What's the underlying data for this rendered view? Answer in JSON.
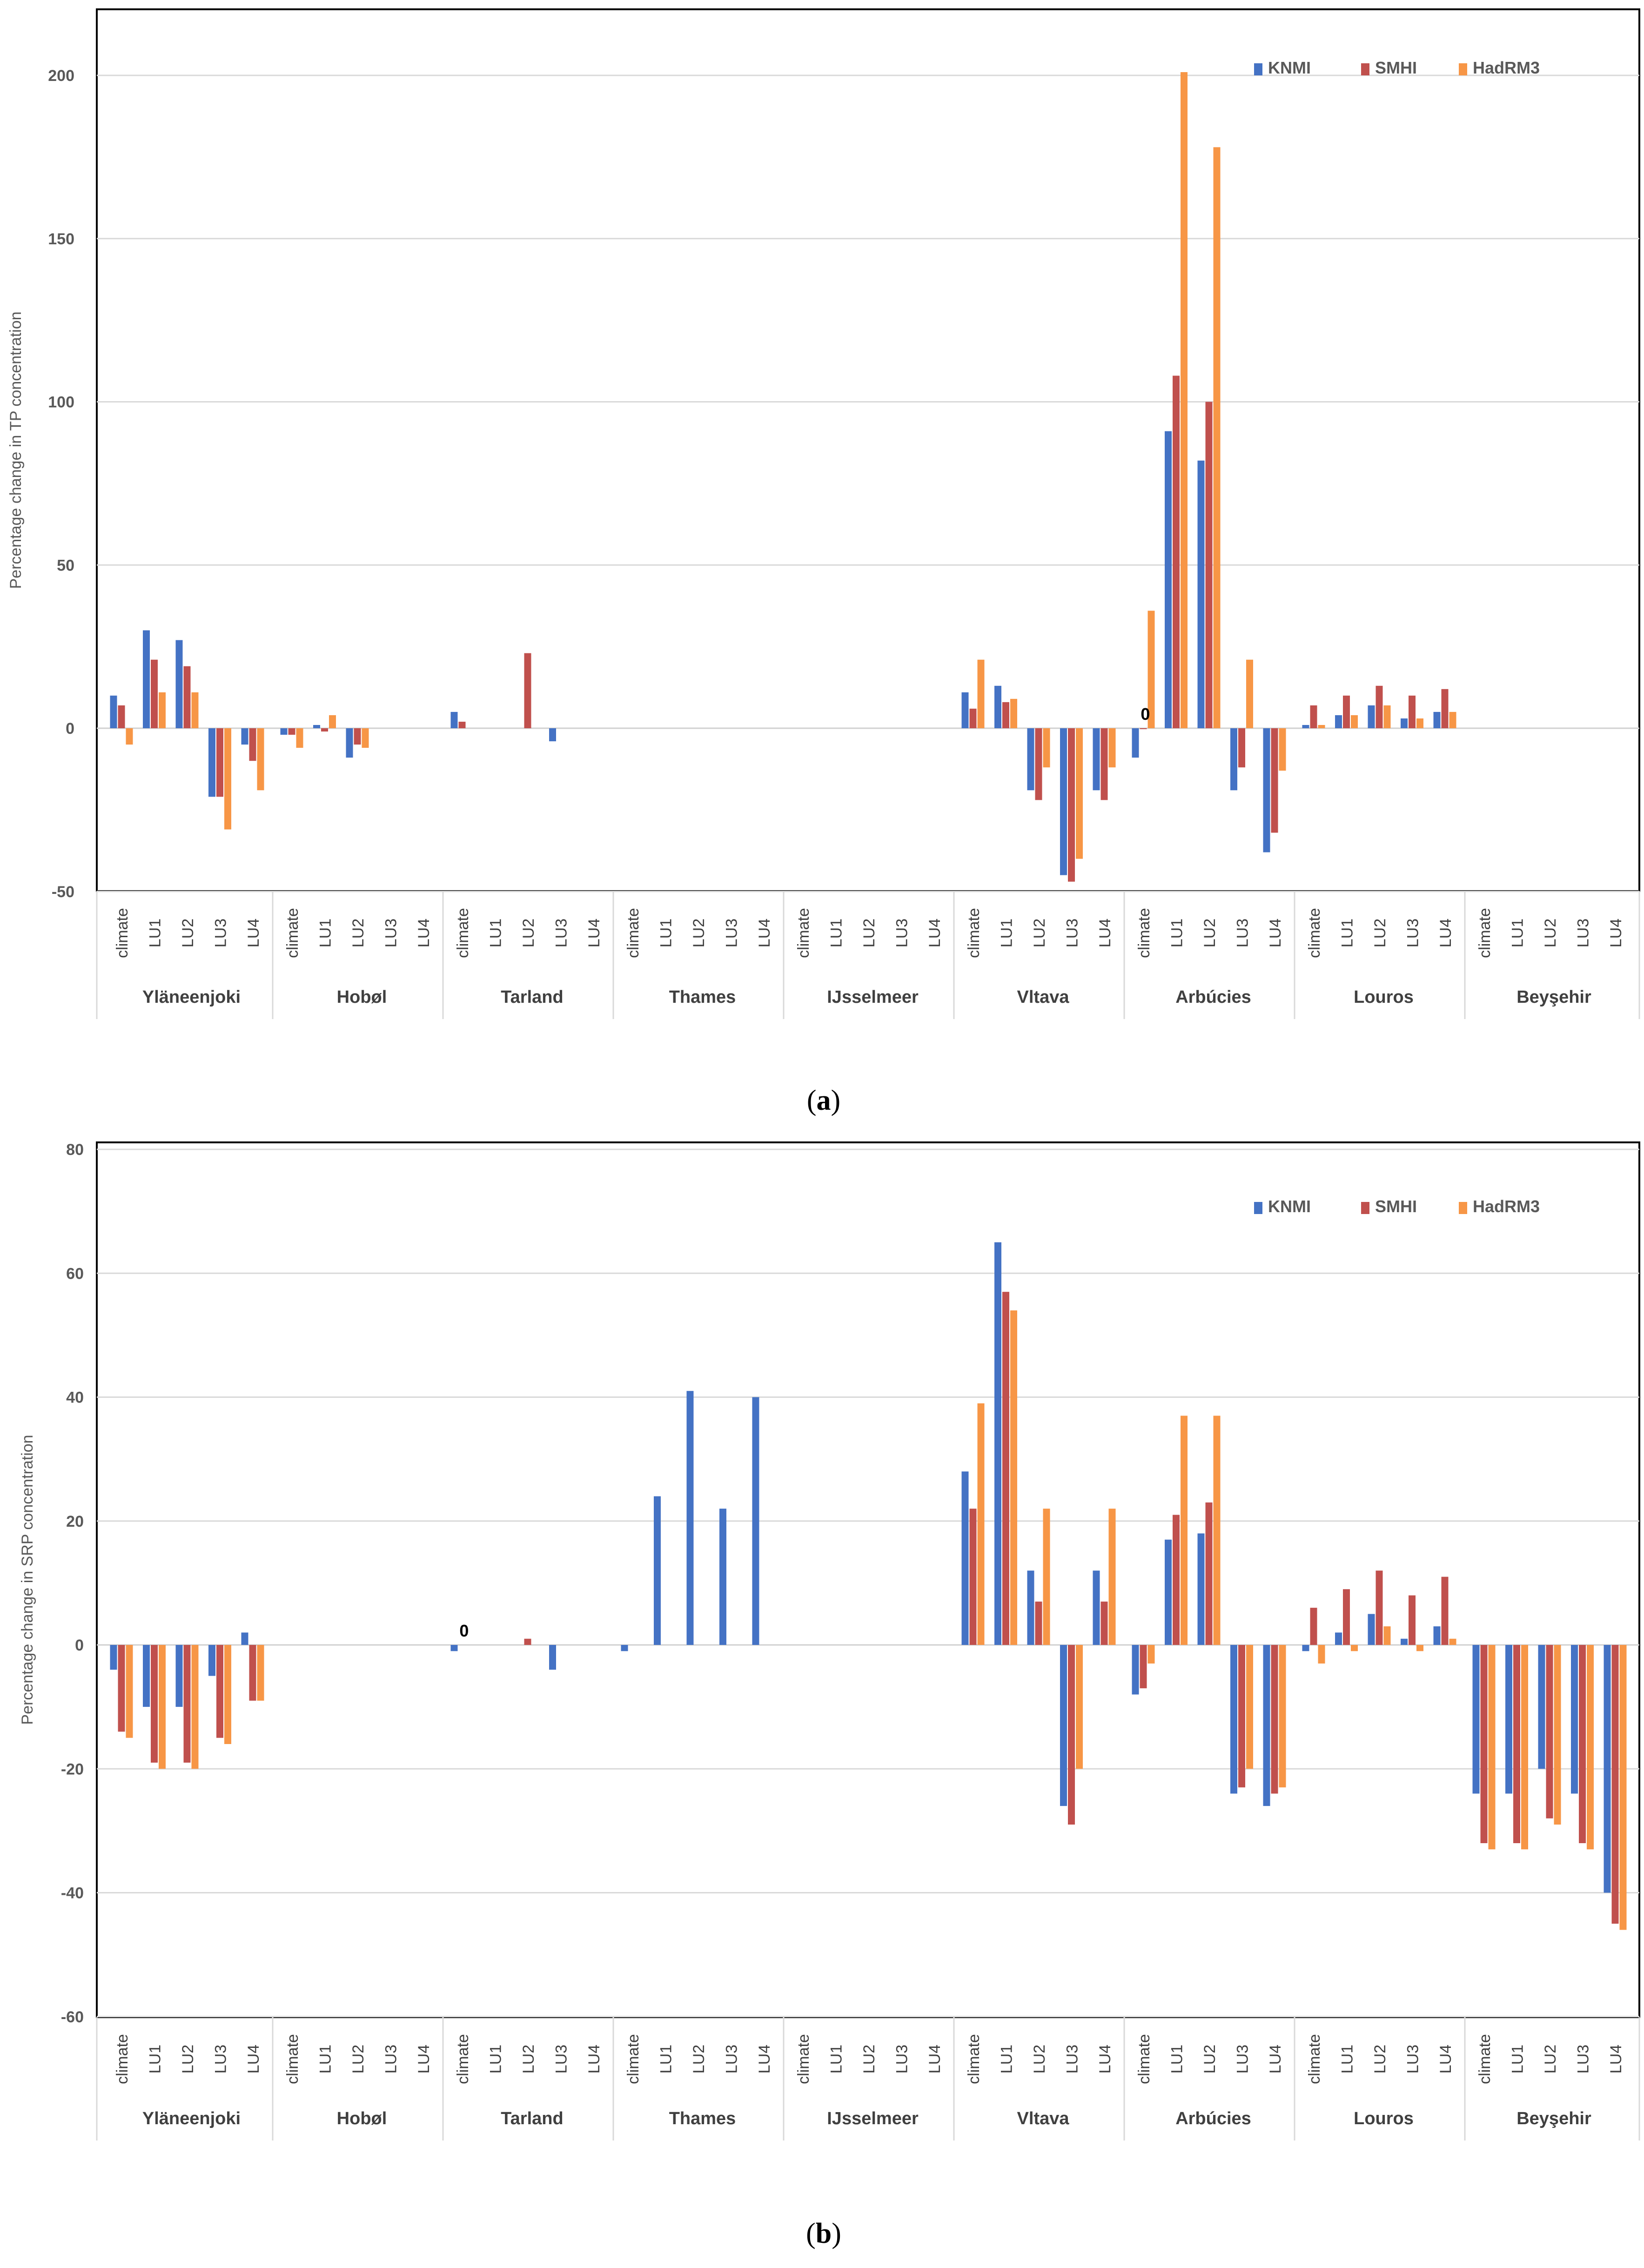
{
  "colors": {
    "KNMI": "#4472C4",
    "SMHI": "#C0504D",
    "HadRM3": "#F79646"
  },
  "chart_data": [
    {
      "type": "bar",
      "caption": {
        "open": "(",
        "letter": "a",
        "close": ")"
      },
      "ylabel": "Percentage change in TP concentration",
      "ylim": [
        -50,
        210
      ],
      "yticks": [
        -50,
        0,
        50,
        100,
        150,
        200
      ],
      "legend_position": "top-right",
      "legend": [
        "KNMI",
        "SMHI",
        "HadRM3"
      ],
      "scenarios": [
        "climate",
        "LU1",
        "LU2",
        "LU3",
        "LU4"
      ],
      "sites": [
        "Yläneenjoki",
        "Hobøl",
        "Tarland",
        "Thames",
        "IJsselmeer",
        "Vltava",
        "Arbúcies",
        "Louros",
        "Beyşehir"
      ],
      "annotations": [
        {
          "text": "0",
          "site": 6,
          "scenario": 0
        }
      ],
      "series": [
        {
          "name": "KNMI",
          "values": [
            [
              10,
              30,
              27,
              -21,
              -5
            ],
            [
              -2,
              1,
              -9,
              null,
              null
            ],
            [
              5,
              null,
              null,
              -4,
              null
            ],
            [
              null,
              null,
              null,
              null,
              null
            ],
            [
              null,
              null,
              null,
              null,
              null
            ],
            [
              11,
              13,
              -19,
              -45,
              -19
            ],
            [
              -9,
              91,
              82,
              -19,
              -38
            ],
            [
              1,
              4,
              7,
              3,
              5
            ],
            [
              null,
              null,
              null,
              null,
              null
            ]
          ]
        },
        {
          "name": "SMHI",
          "values": [
            [
              7,
              21,
              19,
              -21,
              -10
            ],
            [
              -2,
              -1,
              -5,
              null,
              null
            ],
            [
              2,
              null,
              23,
              null,
              null
            ],
            [
              null,
              null,
              null,
              null,
              null
            ],
            [
              null,
              null,
              null,
              null,
              null
            ],
            [
              6,
              8,
              -22,
              -47,
              -22
            ],
            [
              0,
              108,
              100,
              -12,
              -32
            ],
            [
              7,
              10,
              13,
              10,
              12
            ],
            [
              null,
              null,
              null,
              null,
              null
            ]
          ]
        },
        {
          "name": "HadRM3",
          "values": [
            [
              -5,
              11,
              11,
              -31,
              -19
            ],
            [
              -6,
              4,
              -6,
              null,
              null
            ],
            [
              null,
              null,
              null,
              null,
              null
            ],
            [
              null,
              null,
              null,
              null,
              null
            ],
            [
              null,
              null,
              null,
              null,
              null
            ],
            [
              21,
              9,
              -12,
              -40,
              -12
            ],
            [
              36,
              201,
              178,
              21,
              -13
            ],
            [
              1,
              4,
              7,
              3,
              5
            ],
            [
              null,
              null,
              null,
              null,
              null
            ]
          ]
        }
      ]
    },
    {
      "type": "bar",
      "caption": {
        "open": "(",
        "letter": "b",
        "close": ")"
      },
      "ylabel": "Percentage change in SRP concentration",
      "ylim": [
        -60,
        80
      ],
      "yticks": [
        -60,
        -40,
        -20,
        0,
        20,
        40,
        60,
        80
      ],
      "legend_position": "top-right",
      "legend": [
        "KNMI",
        "SMHI",
        "HadRM3"
      ],
      "scenarios": [
        "climate",
        "LU1",
        "LU2",
        "LU3",
        "LU4"
      ],
      "sites": [
        "Yläneenjoki",
        "Hobøl",
        "Tarland",
        "Thames",
        "IJsselmeer",
        "Vltava",
        "Arbúcies",
        "Louros",
        "Beyşehir"
      ],
      "annotations": [
        {
          "text": "0",
          "site": 2,
          "scenario": 0
        }
      ],
      "series": [
        {
          "name": "KNMI",
          "values": [
            [
              -4,
              -10,
              -10,
              -5,
              2
            ],
            [
              null,
              null,
              null,
              null,
              null
            ],
            [
              -1,
              null,
              null,
              -4,
              null
            ],
            [
              -1,
              24,
              41,
              22,
              40
            ],
            [
              null,
              null,
              null,
              null,
              null
            ],
            [
              28,
              65,
              12,
              -26,
              12
            ],
            [
              -8,
              17,
              18,
              -24,
              -26
            ],
            [
              -1,
              2,
              5,
              1,
              3
            ],
            [
              -24,
              -24,
              -20,
              -24,
              -40
            ]
          ]
        },
        {
          "name": "SMHI",
          "values": [
            [
              -14,
              -19,
              -19,
              -15,
              -9
            ],
            [
              null,
              null,
              null,
              null,
              null
            ],
            [
              null,
              null,
              1,
              null,
              null
            ],
            [
              null,
              null,
              null,
              null,
              null
            ],
            [
              null,
              null,
              null,
              null,
              null
            ],
            [
              22,
              57,
              7,
              -29,
              7
            ],
            [
              -7,
              21,
              23,
              -23,
              -24
            ],
            [
              6,
              9,
              12,
              8,
              11
            ],
            [
              -32,
              -32,
              -28,
              -32,
              -45
            ]
          ]
        },
        {
          "name": "HadRM3",
          "values": [
            [
              -15,
              -20,
              -20,
              -16,
              -9
            ],
            [
              null,
              null,
              null,
              null,
              null
            ],
            [
              null,
              null,
              null,
              null,
              null
            ],
            [
              null,
              null,
              null,
              null,
              null
            ],
            [
              null,
              null,
              null,
              null,
              null
            ],
            [
              39,
              54,
              22,
              -20,
              22
            ],
            [
              -3,
              37,
              37,
              -20,
              -23
            ],
            [
              -3,
              -1,
              3,
              -1,
              1
            ],
            [
              -33,
              -33,
              -29,
              -33,
              -46
            ]
          ]
        }
      ]
    }
  ]
}
